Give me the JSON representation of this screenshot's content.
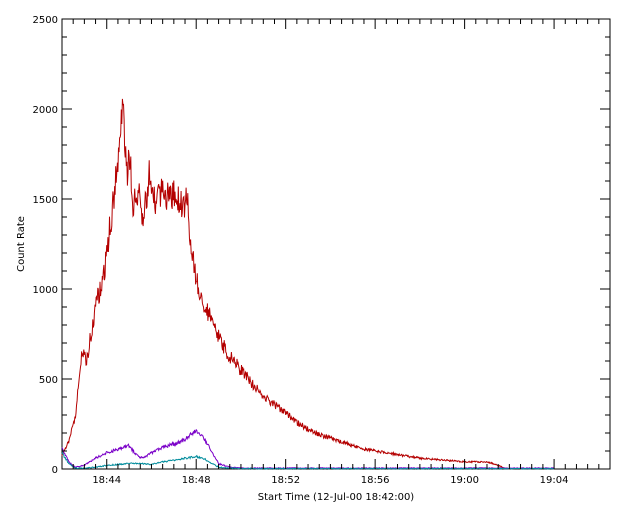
{
  "chart_data": {
    "type": "line",
    "xlabel": "Start Time (12-Jul-00 18:42:00)",
    "ylabel": "Count Rate",
    "x_unit": "minutes after 18:42:00",
    "xlim": [
      0,
      24.5
    ],
    "ylim": [
      0,
      2500
    ],
    "x_ticks": [
      {
        "x": 2,
        "label": "18:44"
      },
      {
        "x": 6,
        "label": "18:48"
      },
      {
        "x": 10,
        "label": "18:52"
      },
      {
        "x": 14,
        "label": "18:56"
      },
      {
        "x": 18,
        "label": "19:00"
      },
      {
        "x": 22,
        "label": "19:04"
      }
    ],
    "y_ticks": [
      0,
      500,
      1000,
      1500,
      2000,
      2500
    ],
    "grid": false,
    "series": [
      {
        "color": "#b40000",
        "x": [
          0.0,
          0.3,
          0.6,
          0.9,
          1.1,
          1.3,
          1.6,
          1.9,
          2.1,
          2.4,
          2.7,
          2.9,
          3.0,
          3.2,
          3.4,
          3.6,
          3.9,
          4.2,
          4.5,
          4.8,
          5.1,
          5.4,
          5.6,
          5.8,
          6.0,
          6.2,
          6.4,
          6.6,
          6.8,
          7.0,
          7.4,
          7.8,
          8.2,
          8.6,
          9.0,
          9.5,
          10.0,
          10.5,
          11.0,
          11.5,
          12.0,
          12.5,
          13.0,
          13.5,
          14.0,
          14.5,
          15.0,
          15.5,
          16.0,
          16.5,
          17.0,
          17.5,
          18.0,
          18.5,
          19.0,
          19.5,
          19.8,
          20.0
        ],
        "y": [
          80,
          150,
          300,
          650,
          600,
          750,
          950,
          1100,
          1300,
          1600,
          2000,
          1650,
          1750,
          1450,
          1550,
          1400,
          1620,
          1450,
          1550,
          1500,
          1550,
          1450,
          1500,
          1200,
          1050,
          980,
          900,
          850,
          790,
          730,
          640,
          580,
          520,
          460,
          400,
          360,
          310,
          260,
          220,
          190,
          170,
          150,
          130,
          110,
          100,
          90,
          80,
          70,
          60,
          55,
          50,
          45,
          40,
          40,
          40,
          20,
          5,
          0
        ]
      },
      {
        "color": "#7a00c8",
        "x": [
          0.0,
          0.3,
          0.6,
          1.0,
          1.5,
          2.0,
          2.5,
          3.0,
          3.3,
          3.6,
          4.0,
          4.5,
          5.0,
          5.5,
          5.8,
          6.0,
          6.3,
          6.6,
          7.0,
          7.5,
          8.0,
          9.0,
          10.0,
          12.0,
          14.0,
          16.0,
          18.0,
          20.0,
          22.0
        ],
        "y": [
          120,
          40,
          10,
          20,
          60,
          90,
          110,
          130,
          80,
          60,
          90,
          120,
          140,
          160,
          200,
          210,
          180,
          120,
          30,
          10,
          5,
          5,
          5,
          5,
          5,
          5,
          5,
          5,
          5
        ]
      },
      {
        "color": "#008c9c",
        "x": [
          0.0,
          0.3,
          0.6,
          1.0,
          1.5,
          2.0,
          2.5,
          3.0,
          3.5,
          4.0,
          4.5,
          5.0,
          5.5,
          5.8,
          6.0,
          6.3,
          6.6,
          7.0,
          7.5,
          8.0,
          9.0,
          10.0,
          12.0,
          14.0,
          16.0,
          18.0,
          20.0,
          22.0
        ],
        "y": [
          90,
          30,
          5,
          5,
          10,
          20,
          25,
          30,
          30,
          25,
          40,
          50,
          60,
          65,
          70,
          60,
          40,
          10,
          5,
          2,
          2,
          2,
          2,
          2,
          2,
          2,
          2,
          2
        ]
      }
    ]
  }
}
